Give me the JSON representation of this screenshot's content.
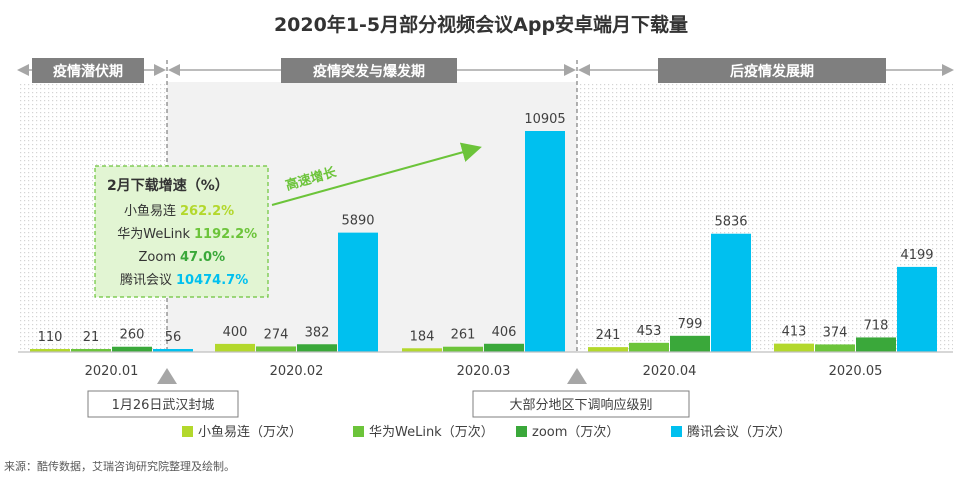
{
  "chart_data": {
    "type": "bar",
    "title": "2020年1-5月部分视频会议App安卓端月下载量",
    "categories": [
      "2020.01",
      "2020.02",
      "2020.03",
      "2020.04",
      "2020.05"
    ],
    "series": [
      {
        "name": "小鱼易连（万次）",
        "color": "#b3d82c",
        "values": [
          110,
          400,
          184,
          241,
          413
        ]
      },
      {
        "name": "华为WeLink（万次）",
        "color": "#6cc43a",
        "values": [
          21,
          274,
          261,
          453,
          374
        ]
      },
      {
        "name": "zoom（万次）",
        "color": "#3aa83a",
        "values": [
          260,
          382,
          406,
          799,
          718
        ]
      },
      {
        "name": "腾讯会议（万次）",
        "color": "#00c0ef",
        "values": [
          56,
          5890,
          10905,
          5836,
          4199
        ]
      }
    ],
    "ylim": [
      0,
      10905
    ],
    "xlabel": "",
    "ylabel": "",
    "grid": false,
    "legend": "bottom"
  },
  "phases": [
    {
      "label": "疫情潜伏期"
    },
    {
      "label": "疫情突发与爆发期"
    },
    {
      "label": "后疫情发展期"
    }
  ],
  "growth_box": {
    "title": "2月下载增速（%）",
    "rows": [
      {
        "name": "小鱼易连",
        "value": "262.2%",
        "color": "#b3d82c"
      },
      {
        "name": "华为WeLink",
        "value": "1192.2%",
        "color": "#6cc43a"
      },
      {
        "name": "Zoom",
        "value": "47.0%",
        "color": "#3aa83a"
      },
      {
        "name": "腾讯会议",
        "value": "10474.7%",
        "color": "#00c0ef"
      }
    ]
  },
  "arrow_label": "高速增长",
  "events": [
    {
      "label": "1月26日武汉封城"
    },
    {
      "label": "大部分地区下调响应级别"
    }
  ],
  "source": "来源：酷传数据，艾瑞咨询研究院整理及绘制。",
  "colors": {
    "phase_bg": "#7f7f7f",
    "dashed_box_bg": "#e2f5d3",
    "dashed_box_border": "#6cc43a",
    "axis": "#bfbfbf",
    "text": "#404040"
  }
}
